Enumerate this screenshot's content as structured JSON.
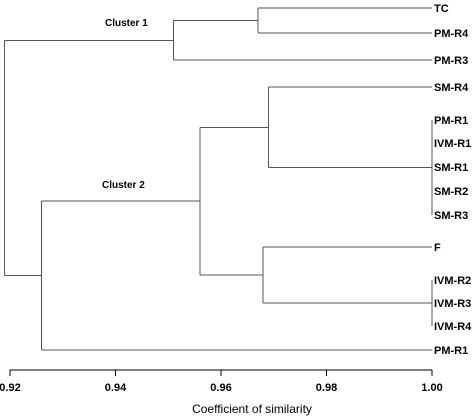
{
  "chart_data": {
    "type": "dendrogram",
    "xlabel": "Coefficient of similarity",
    "xlim": [
      0.92,
      1.0
    ],
    "ticks": [
      "0.92",
      "0.94",
      "0.96",
      "0.98",
      "1.00"
    ],
    "tick_values": [
      0.92,
      0.94,
      0.96,
      0.98,
      1.0
    ],
    "leaves": [
      "TC",
      "PM-R4",
      "PM-R3",
      "SM-R4",
      "PM-R1",
      "IVM-R1",
      "SM-R1",
      "SM-R2",
      "SM-R3",
      "F",
      "IVM-R2",
      "IVM-R3",
      "IVM-R4",
      "PM-R1"
    ],
    "merges": [
      {
        "members": [
          "TC",
          "PM-R4"
        ],
        "similarity": 0.967
      },
      {
        "members": [
          "TC + PM-R4",
          "PM-R3"
        ],
        "similarity": 0.951
      },
      {
        "members": [
          "PM-R1",
          "IVM-R1",
          "SM-R1",
          "SM-R2",
          "SM-R3"
        ],
        "similarity": 1.0
      },
      {
        "members": [
          "SM-R4",
          "PM-R1 group"
        ],
        "similarity": 0.969
      },
      {
        "members": [
          "IVM-R2",
          "IVM-R3",
          "IVM-R4"
        ],
        "similarity": 1.0
      },
      {
        "members": [
          "F",
          "IVM-R2 group"
        ],
        "similarity": 0.968
      },
      {
        "members": [
          "SM-R4 group",
          "F group"
        ],
        "similarity": 0.956
      },
      {
        "members": [
          "Cluster 2 core",
          "PM-R1"
        ],
        "similarity": 0.926
      },
      {
        "members": [
          "Cluster 1",
          "Cluster 2"
        ],
        "similarity": 0.919
      }
    ],
    "clusters": [
      {
        "label": "Cluster 1"
      },
      {
        "label": "Cluster 2"
      }
    ]
  }
}
